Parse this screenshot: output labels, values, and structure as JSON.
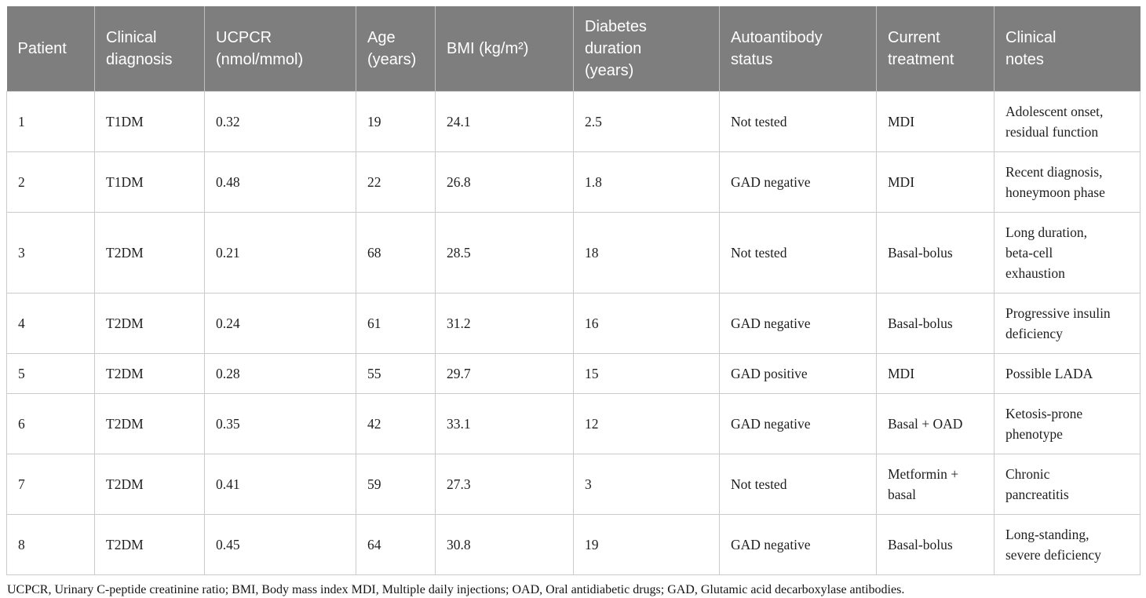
{
  "colors": {
    "header_bg": "#7e7e7e",
    "header_text": "#ffffff",
    "body_border": "#cbcbcb",
    "body_text": "#1f1f1f"
  },
  "table": {
    "headers": [
      "Patient",
      "Clinical\ndiagnosis",
      "UCPCR\n(nmol/mmol)",
      "Age\n(years)",
      "BMI (kg/m²)",
      "Diabetes\nduration\n(years)",
      "Autoantibody\nstatus",
      "Current\ntreatment",
      "Clinical\nnotes"
    ],
    "rows": [
      {
        "patient": "1",
        "diagnosis": "T1DM",
        "ucpcr": "0.32",
        "age": "19",
        "bmi": "24.1",
        "duration": "2.5",
        "autoantibody": "Not tested",
        "treatment": "MDI",
        "notes": "Adolescent onset,\nresidual function"
      },
      {
        "patient": "2",
        "diagnosis": "T1DM",
        "ucpcr": "0.48",
        "age": "22",
        "bmi": "26.8",
        "duration": "1.8",
        "autoantibody": "GAD negative",
        "treatment": "MDI",
        "notes": "Recent diagnosis,\nhoneymoon phase"
      },
      {
        "patient": "3",
        "diagnosis": "T2DM",
        "ucpcr": "0.21",
        "age": "68",
        "bmi": "28.5",
        "duration": "18",
        "autoantibody": "Not tested",
        "treatment": "Basal-bolus",
        "notes": "Long duration,\nbeta-cell\nexhaustion"
      },
      {
        "patient": "4",
        "diagnosis": "T2DM",
        "ucpcr": "0.24",
        "age": "61",
        "bmi": "31.2",
        "duration": "16",
        "autoantibody": "GAD negative",
        "treatment": "Basal-bolus",
        "notes": "Progressive insulin\ndeficiency"
      },
      {
        "patient": "5",
        "diagnosis": "T2DM",
        "ucpcr": "0.28",
        "age": "55",
        "bmi": "29.7",
        "duration": "15",
        "autoantibody": "GAD positive",
        "treatment": "MDI",
        "notes": "Possible LADA"
      },
      {
        "patient": "6",
        "diagnosis": "T2DM",
        "ucpcr": "0.35",
        "age": "42",
        "bmi": "33.1",
        "duration": "12",
        "autoantibody": "GAD negative",
        "treatment": "Basal + OAD",
        "notes": "Ketosis-prone\nphenotype"
      },
      {
        "patient": "7",
        "diagnosis": "T2DM",
        "ucpcr": "0.41",
        "age": "59",
        "bmi": "27.3",
        "duration": "3",
        "autoantibody": "Not tested",
        "treatment": "Metformin +\nbasal",
        "notes": "Chronic\npancreatitis"
      },
      {
        "patient": "8",
        "diagnosis": "T2DM",
        "ucpcr": "0.45",
        "age": "64",
        "bmi": "30.8",
        "duration": "19",
        "autoantibody": "GAD negative",
        "treatment": "Basal-bolus",
        "notes": "Long-standing,\nsevere deficiency"
      }
    ],
    "footnote": "UCPCR, Urinary C-peptide creatinine ratio; BMI, Body mass index MDI, Multiple daily injections; OAD, Oral antidiabetic drugs; GAD, Glutamic acid decarboxylase antibodies."
  }
}
